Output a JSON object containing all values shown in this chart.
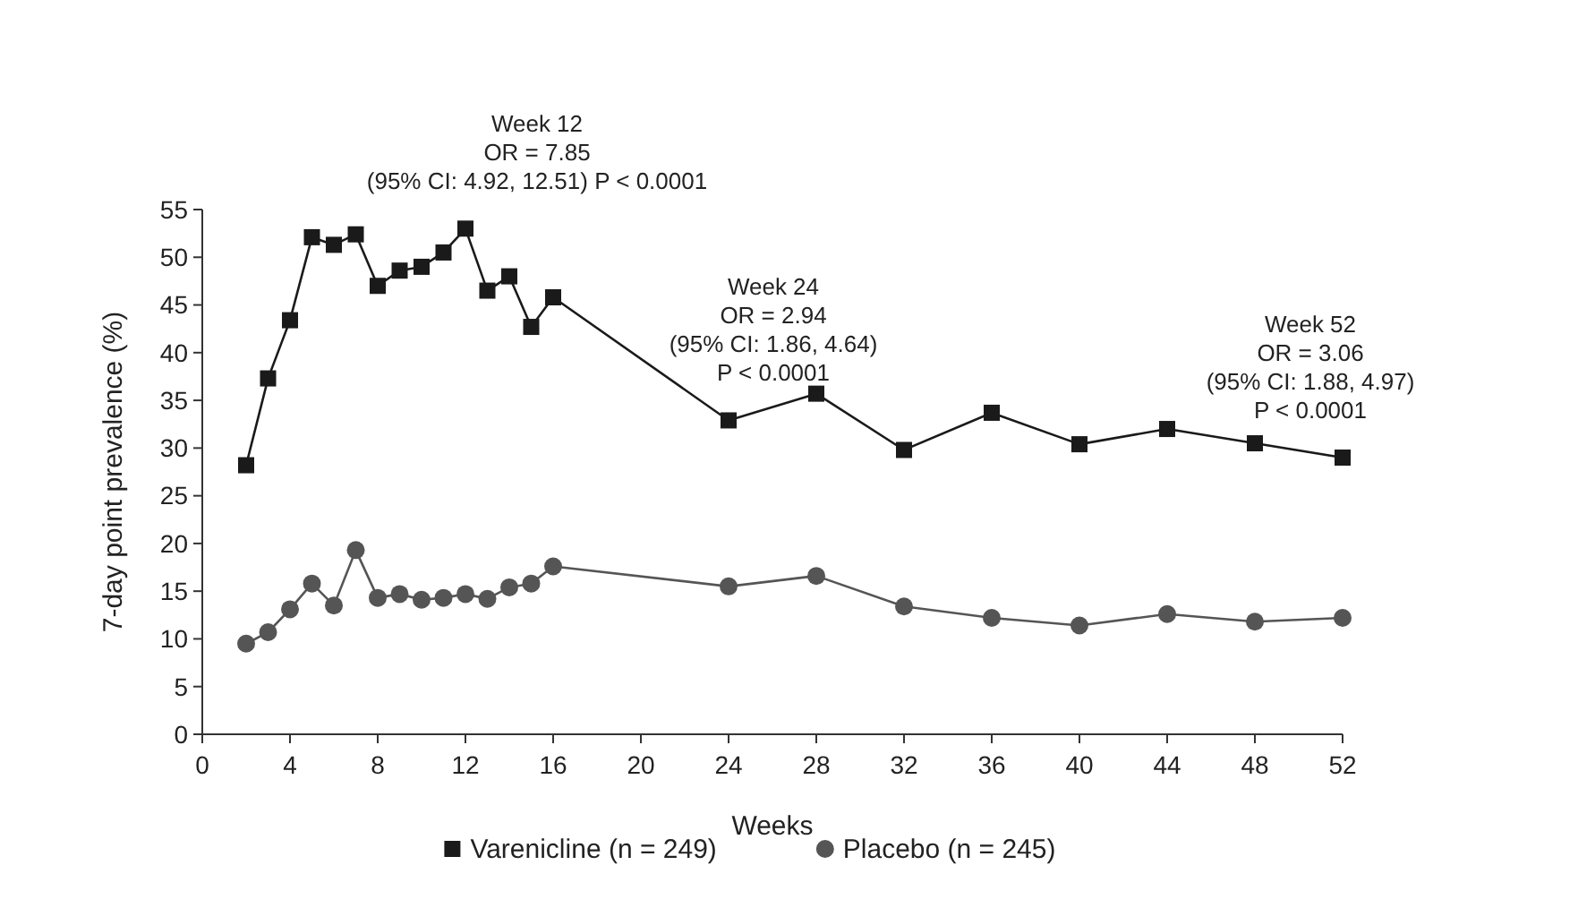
{
  "chart_data": {
    "type": "line",
    "xlabel": "Weeks",
    "ylabel": "7-day point prevalence (%)",
    "xlim": [
      0,
      52
    ],
    "xticks": [
      0,
      4,
      8,
      12,
      16,
      20,
      24,
      28,
      32,
      36,
      40,
      44,
      48,
      52
    ],
    "ylim": [
      0,
      55
    ],
    "yticks": [
      0,
      5,
      10,
      15,
      20,
      25,
      30,
      35,
      40,
      45,
      50,
      55
    ],
    "x": [
      2,
      3,
      4,
      5,
      6,
      7,
      8,
      9,
      10,
      11,
      12,
      13,
      14,
      15,
      16,
      24,
      28,
      32,
      36,
      40,
      44,
      48,
      52
    ],
    "series": [
      {
        "name": "Varenicline (n = 249)",
        "color": "#1a1a1a",
        "marker": "square",
        "values": [
          28.2,
          37.3,
          43.4,
          52.1,
          51.3,
          52.4,
          47,
          48.6,
          49,
          50.5,
          53,
          46.5,
          48,
          42.7,
          45.8,
          32.9,
          35.7,
          29.8,
          33.7,
          30.4,
          32,
          30.5,
          29
        ]
      },
      {
        "name": "Placebo (n = 245)",
        "color": "#555555",
        "marker": "circle",
        "values": [
          9.5,
          10.7,
          13.1,
          15.8,
          13.5,
          19.3,
          14.3,
          14.7,
          14.1,
          14.3,
          14.7,
          14.2,
          15.4,
          15.8,
          17.6,
          15.5,
          16.6,
          13.4,
          12.2,
          11.4,
          12.6,
          11.8,
          12.2
        ]
      }
    ],
    "annotations": [
      {
        "text": "Week 12\nOR = 7.85\n(95% CI: 4.92, 12.51) P < 0.0001",
        "x": 12,
        "y": 53
      },
      {
        "text": "Week 24\nOR = 2.94\n(95% CI: 1.86, 4.64)\nP < 0.0001",
        "x": 24,
        "y": 32.9
      },
      {
        "text": "Week 52\nOR = 3.06\n(95% CI: 1.88, 4.97)\nP < 0.0001",
        "x": 52,
        "y": 29
      }
    ],
    "grid": false,
    "legend": "bottom",
    "line_style": "solid"
  }
}
